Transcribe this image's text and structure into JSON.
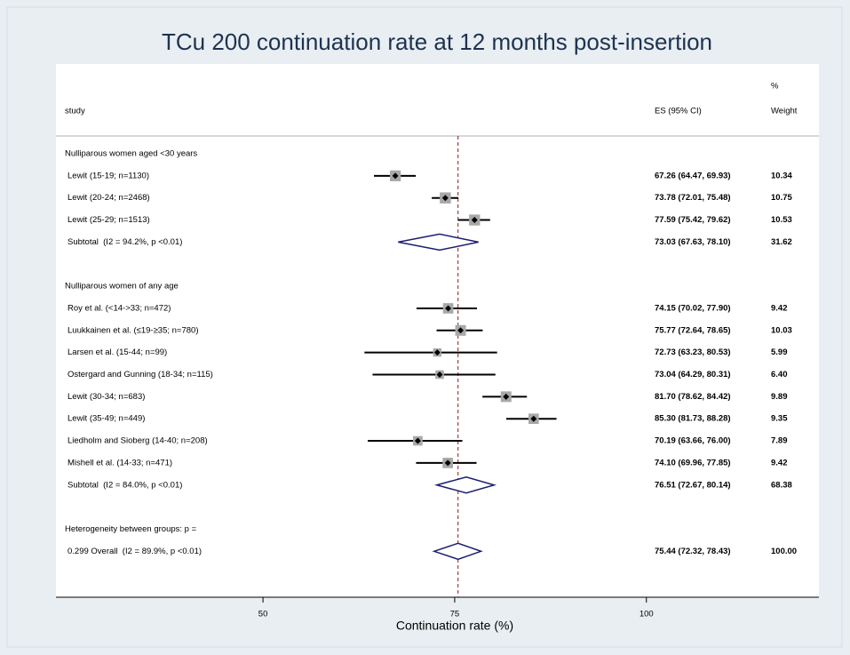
{
  "chart_data": {
    "type": "forest",
    "title": "TCu 200 continuation rate at 12 months post-insertion",
    "headers": {
      "study": "study",
      "es": "ES (95% CI)",
      "weight_top": "%",
      "weight": "Weight"
    },
    "xlabel": "Continuation rate (%)",
    "xlim": [
      23,
      122.5
    ],
    "xticks": [
      50,
      75,
      100
    ],
    "groups": [
      {
        "name": "Nulliparous women aged <30 years",
        "studies": [
          {
            "label": "Lewit (15-19; n=1130)",
            "value": 67.26,
            "ci": [
              64.47,
              69.93
            ],
            "value_label": "67.26 (64.47, 69.93)",
            "weight": 10.34,
            "weight_label": "10.34"
          },
          {
            "label": "Lewit (20-24; n=2468)",
            "value": 73.78,
            "ci": [
              72.01,
              75.48
            ],
            "value_label": "73.78 (72.01, 75.48)",
            "weight": 10.75,
            "weight_label": "10.75"
          },
          {
            "label": "Lewit (25-29; n=1513)",
            "value": 77.59,
            "ci": [
              75.42,
              79.62
            ],
            "value_label": "77.59 (75.42, 79.62)",
            "weight": 10.53,
            "weight_label": "10.53"
          }
        ],
        "subtotal": {
          "label": "Subtotal  (I2 = 94.2%, p <0.01)",
          "value": 73.03,
          "ci": [
            67.63,
            78.1
          ],
          "value_label": "73.03 (67.63, 78.10)",
          "weight": 31.62,
          "weight_label": "31.62"
        }
      },
      {
        "name": "Nulliparous women of any age",
        "studies": [
          {
            "label": "Roy et al. (<14->33; n=472)",
            "value": 74.15,
            "ci": [
              70.02,
              77.9
            ],
            "value_label": "74.15 (70.02, 77.90)",
            "weight": 9.42,
            "weight_label": "9.42"
          },
          {
            "label": "Luukkainen et al. (≤19-≥35; n=780)",
            "value": 75.77,
            "ci": [
              72.64,
              78.65
            ],
            "value_label": "75.77 (72.64, 78.65)",
            "weight": 10.03,
            "weight_label": "10.03"
          },
          {
            "label": "Larsen et al. (15-44; n=99)",
            "value": 72.73,
            "ci": [
              63.23,
              80.53
            ],
            "value_label": "72.73 (63.23, 80.53)",
            "weight": 5.99,
            "weight_label": "5.99"
          },
          {
            "label": "Ostergard and Gunning (18-34; n=115)",
            "value": 73.04,
            "ci": [
              64.29,
              80.31
            ],
            "value_label": "73.04 (64.29, 80.31)",
            "weight": 6.4,
            "weight_label": "6.40"
          },
          {
            "label": "Lewit (30-34; n=683)",
            "value": 81.7,
            "ci": [
              78.62,
              84.42
            ],
            "value_label": "81.70 (78.62, 84.42)",
            "weight": 9.89,
            "weight_label": "9.89"
          },
          {
            "label": "Lewit (35-49; n=449)",
            "value": 85.3,
            "ci": [
              81.73,
              88.28
            ],
            "value_label": "85.30 (81.73, 88.28)",
            "weight": 9.35,
            "weight_label": "9.35"
          },
          {
            "label": "Liedholm and Sioberg (14-40; n=208)",
            "value": 70.19,
            "ci": [
              63.66,
              76.0
            ],
            "value_label": "70.19 (63.66, 76.00)",
            "weight": 7.89,
            "weight_label": "7.89"
          },
          {
            "label": "Mishell et al. (14-33; n=471)",
            "value": 74.1,
            "ci": [
              69.96,
              77.85
            ],
            "value_label": "74.10 (69.96, 77.85)",
            "weight": 9.42,
            "weight_label": "9.42"
          }
        ],
        "subtotal": {
          "label": "Subtotal  (I2 = 84.0%, p <0.01)",
          "value": 76.51,
          "ci": [
            72.67,
            80.14
          ],
          "value_label": "76.51 (72.67, 80.14)",
          "weight": 68.38,
          "weight_label": "68.38"
        }
      }
    ],
    "heterogeneity": "Heterogeneity between groups: p =",
    "overall": {
      "label": "0.299 Overall  (I2 = 89.9%, p <0.01)",
      "value": 75.44,
      "ci": [
        72.32,
        78.43
      ],
      "value_label": "75.44 (72.32, 78.43)",
      "weight": 100.0,
      "weight_label": "100.00"
    }
  }
}
